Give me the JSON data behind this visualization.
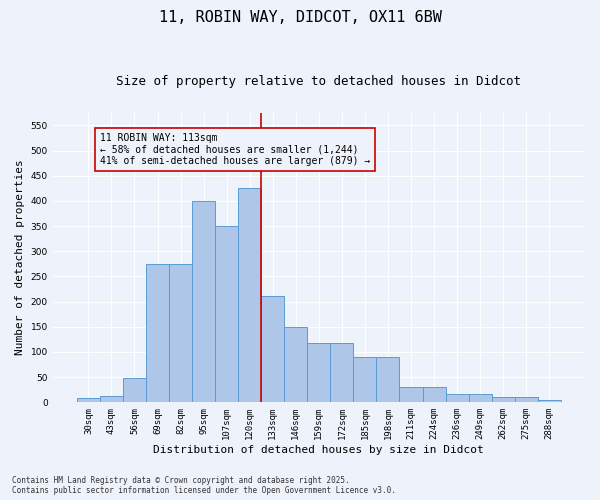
{
  "title1": "11, ROBIN WAY, DIDCOT, OX11 6BW",
  "title2": "Size of property relative to detached houses in Didcot",
  "xlabel": "Distribution of detached houses by size in Didcot",
  "ylabel": "Number of detached properties",
  "categories": [
    "30sqm",
    "43sqm",
    "56sqm",
    "69sqm",
    "82sqm",
    "95sqm",
    "107sqm",
    "120sqm",
    "133sqm",
    "146sqm",
    "159sqm",
    "172sqm",
    "185sqm",
    "198sqm",
    "211sqm",
    "224sqm",
    "236sqm",
    "249sqm",
    "262sqm",
    "275sqm",
    "288sqm"
  ],
  "values": [
    8,
    13,
    48,
    275,
    275,
    400,
    350,
    425,
    212,
    150,
    117,
    117,
    90,
    90,
    30,
    30,
    17,
    17,
    10,
    10,
    4
  ],
  "bar_color": "#aec6e8",
  "bar_edge_color": "#5b9bd5",
  "bg_color": "#eef2fb",
  "grid_color": "#ffffff",
  "vline_pos": 7.5,
  "vline_color": "#cc0000",
  "annotation_title": "11 ROBIN WAY: 113sqm",
  "annotation_line1": "← 58% of detached houses are smaller (1,244)",
  "annotation_line2": "41% of semi-detached houses are larger (879) →",
  "annotation_box_color": "#cc0000",
  "ylim": [
    0,
    575
  ],
  "yticks": [
    0,
    50,
    100,
    150,
    200,
    250,
    300,
    350,
    400,
    450,
    500,
    550
  ],
  "footnote1": "Contains HM Land Registry data © Crown copyright and database right 2025.",
  "footnote2": "Contains public sector information licensed under the Open Government Licence v3.0.",
  "title1_fontsize": 11,
  "title2_fontsize": 9,
  "xlabel_fontsize": 8,
  "ylabel_fontsize": 8,
  "tick_fontsize": 6.5,
  "annotation_fontsize": 7,
  "footnote_fontsize": 5.5
}
